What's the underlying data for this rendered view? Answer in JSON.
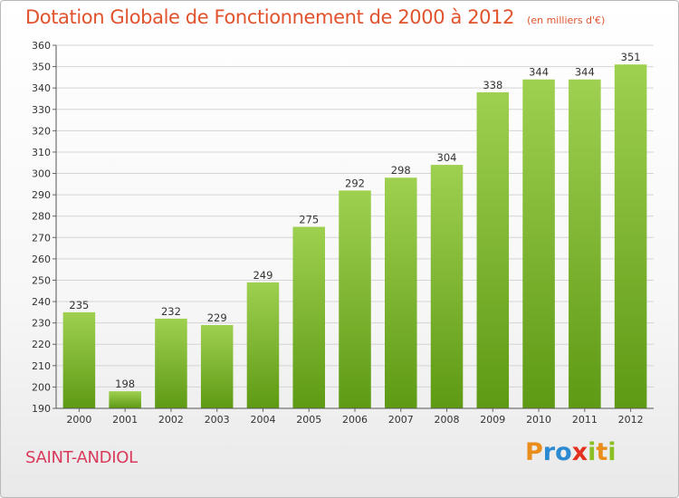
{
  "header": {
    "title": "Dotation Globale de Fonctionnement de 2000 à 2012",
    "unit": "(en milliers d'€)"
  },
  "footer": {
    "commune": "SAINT-ANDIOL",
    "logo_letters": [
      "P",
      "r",
      "o",
      "x",
      "i",
      "t",
      "i"
    ]
  },
  "colors": {
    "title": "#e0532d",
    "commune": "#d93a5c",
    "bar_top": "#9fd050",
    "bar_bottom": "#5e9a14",
    "logo": [
      "#e98e1c",
      "#2b8ad1",
      "#2b8ad1",
      "#e4301e",
      "#8bbf24",
      "#e98e1c",
      "#8bbf24"
    ]
  },
  "chart_data": {
    "type": "bar",
    "title": "Dotation Globale de Fonctionnement de 2000 à 2012",
    "subtitle": "(en milliers d'€)",
    "xlabel": "",
    "ylabel": "",
    "categories": [
      "2000",
      "2001",
      "2002",
      "2003",
      "2004",
      "2005",
      "2006",
      "2007",
      "2008",
      "2009",
      "2010",
      "2011",
      "2012"
    ],
    "values": [
      235,
      198,
      232,
      229,
      249,
      275,
      292,
      298,
      304,
      338,
      344,
      344,
      351
    ],
    "ylim": [
      190,
      360
    ],
    "yticks": [
      190,
      200,
      210,
      220,
      230,
      240,
      250,
      260,
      270,
      280,
      290,
      300,
      310,
      320,
      330,
      340,
      350,
      360
    ],
    "grid": true,
    "data_labels": true
  }
}
